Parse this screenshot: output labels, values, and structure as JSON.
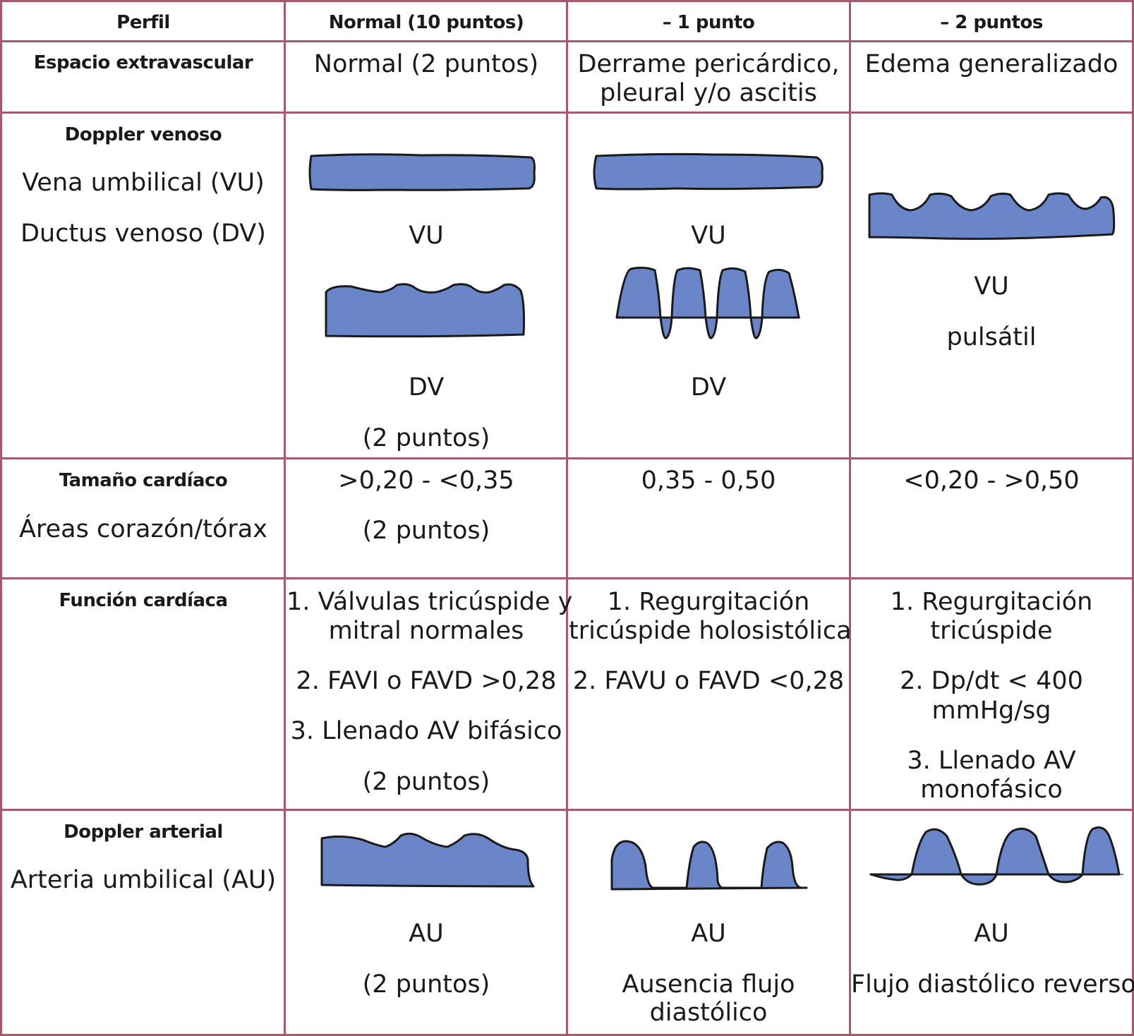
{
  "header": {
    "col0": "Perfil",
    "col1": "Normal (10 puntos)",
    "col2": "– 1 punto",
    "col3": "– 2 puntos"
  },
  "rows": {
    "espacio": {
      "label": "Espacio extravascular",
      "c1": "Normal (2 puntos)",
      "c2_line1": "Derrame pericárdico,",
      "c2_line2": "pleural y/o ascitis",
      "c3": "Edema generalizado"
    },
    "venoso": {
      "label": "Doppler venoso",
      "sub1": "Vena umbilical (VU)",
      "sub2": "Ductus venoso (DV)",
      "c1_vu": "VU",
      "c1_dv": "DV",
      "c1_points": "(2 puntos)",
      "c2_vu": "VU",
      "c2_dv": "DV",
      "c3_vu": "VU",
      "c3_pulsatil": "pulsátil"
    },
    "tamano": {
      "label": "Tamaño cardíaco",
      "sub": "Áreas corazón/tórax",
      "c1": ">0,20 - <0,35",
      "c1_points": "(2 puntos)",
      "c2": "0,35 - 0,50",
      "c3": "<0,20 - >0,50"
    },
    "funcion": {
      "label": "Función cardíaca",
      "c1_1a": "1. Válvulas tricúspide y",
      "c1_1b": "mitral normales",
      "c1_2": "2. FAVI o FAVD >0,28",
      "c1_3": "3. Llenado AV bifásico",
      "c1_points": "(2 puntos)",
      "c2_1a": "1. Regurgitación",
      "c2_1b": "tricúspide holosistólica",
      "c2_2": "2. FAVU o FAVD <0,28",
      "c3_1a": "1. Regurgitación",
      "c3_1b": "tricúspide",
      "c3_2a": "2. Dp/dt < 400",
      "c3_2b": "mmHg/sg",
      "c3_3a": "3. Llenado  AV",
      "c3_3b": "monofásico"
    },
    "arterial": {
      "label": "Doppler arterial",
      "sub": "Arteria umbilical (AU)",
      "c1_au": "AU",
      "c1_points": "(2 puntos)",
      "c2_au": "AU",
      "c2_desc1": "Ausencia  flujo",
      "c2_desc2": "diastólico",
      "c3_au": "AU",
      "c3_desc": "Flujo diastólico reverso"
    }
  },
  "colors": {
    "grid_line": "#a65a6e",
    "waveform_fill": "#6a86c9"
  }
}
